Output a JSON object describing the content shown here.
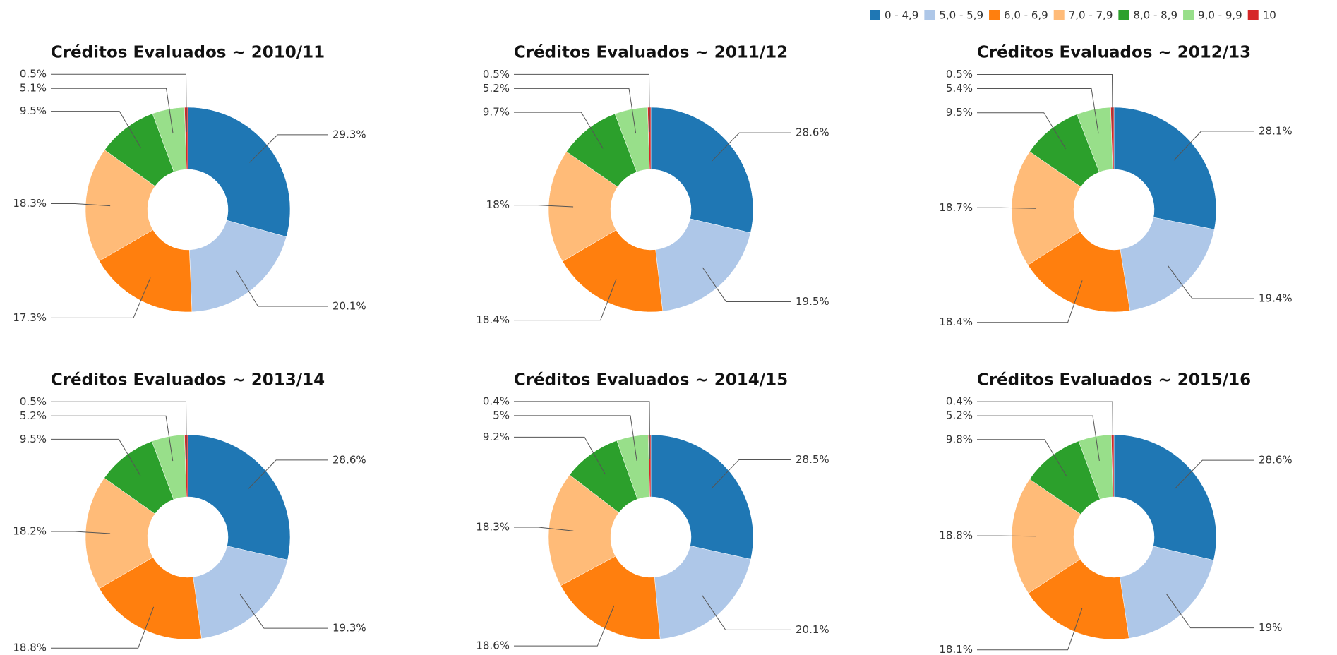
{
  "legend": {
    "categories": [
      "0 - 4,9",
      "5,0 - 5,9",
      "6,0 - 6,9",
      "7,0 - 7,9",
      "8,0 - 8,9",
      "9,0 - 9,9",
      "10"
    ],
    "colors": [
      "#1f77b4",
      "#aec7e8",
      "#ff7f0e",
      "#ffbb78",
      "#2ca02c",
      "#98df8a",
      "#d62728"
    ]
  },
  "chart_data": [
    {
      "type": "donut",
      "title": "Créditos Evaluados ~ 2010/11",
      "values": [
        29.3,
        20.1,
        17.3,
        18.3,
        9.5,
        5.1,
        0.5
      ],
      "value_labels": [
        "29.3%",
        "20.1%",
        "17.3%",
        "18.3%",
        "9.5%",
        "5.1%",
        "0.5%"
      ]
    },
    {
      "type": "donut",
      "title": "Créditos Evaluados ~ 2011/12",
      "values": [
        28.6,
        19.5,
        18.4,
        18,
        9.7,
        5.2,
        0.5
      ],
      "value_labels": [
        "28.6%",
        "19.5%",
        "18.4%",
        "18%",
        "9.7%",
        "5.2%",
        "0.5%"
      ]
    },
    {
      "type": "donut",
      "title": "Créditos Evaluados ~ 2012/13",
      "values": [
        28.1,
        19.4,
        18.4,
        18.7,
        9.5,
        5.4,
        0.5
      ],
      "value_labels": [
        "28.1%",
        "19.4%",
        "18.4%",
        "18.7%",
        "9.5%",
        "5.4%",
        "0.5%"
      ]
    },
    {
      "type": "donut",
      "title": "Créditos Evaluados ~ 2013/14",
      "values": [
        28.6,
        19.3,
        18.8,
        18.2,
        9.5,
        5.2,
        0.5
      ],
      "value_labels": [
        "28.6%",
        "19.3%",
        "18.8%",
        "18.2%",
        "9.5%",
        "5.2%",
        "0.5%"
      ]
    },
    {
      "type": "donut",
      "title": "Créditos Evaluados ~ 2014/15",
      "values": [
        28.5,
        20.1,
        18.6,
        18.3,
        9.2,
        5,
        0.4
      ],
      "value_labels": [
        "28.5%",
        "20.1%",
        "18.6%",
        "18.3%",
        "9.2%",
        "5%",
        "0.4%"
      ]
    },
    {
      "type": "donut",
      "title": "Créditos Evaluados ~ 2015/16",
      "values": [
        28.6,
        19,
        18.1,
        18.8,
        9.8,
        5.2,
        0.4
      ],
      "value_labels": [
        "28.6%",
        "19%",
        "18.1%",
        "18.8%",
        "9.8%",
        "5.2%",
        "0.4%"
      ]
    }
  ]
}
